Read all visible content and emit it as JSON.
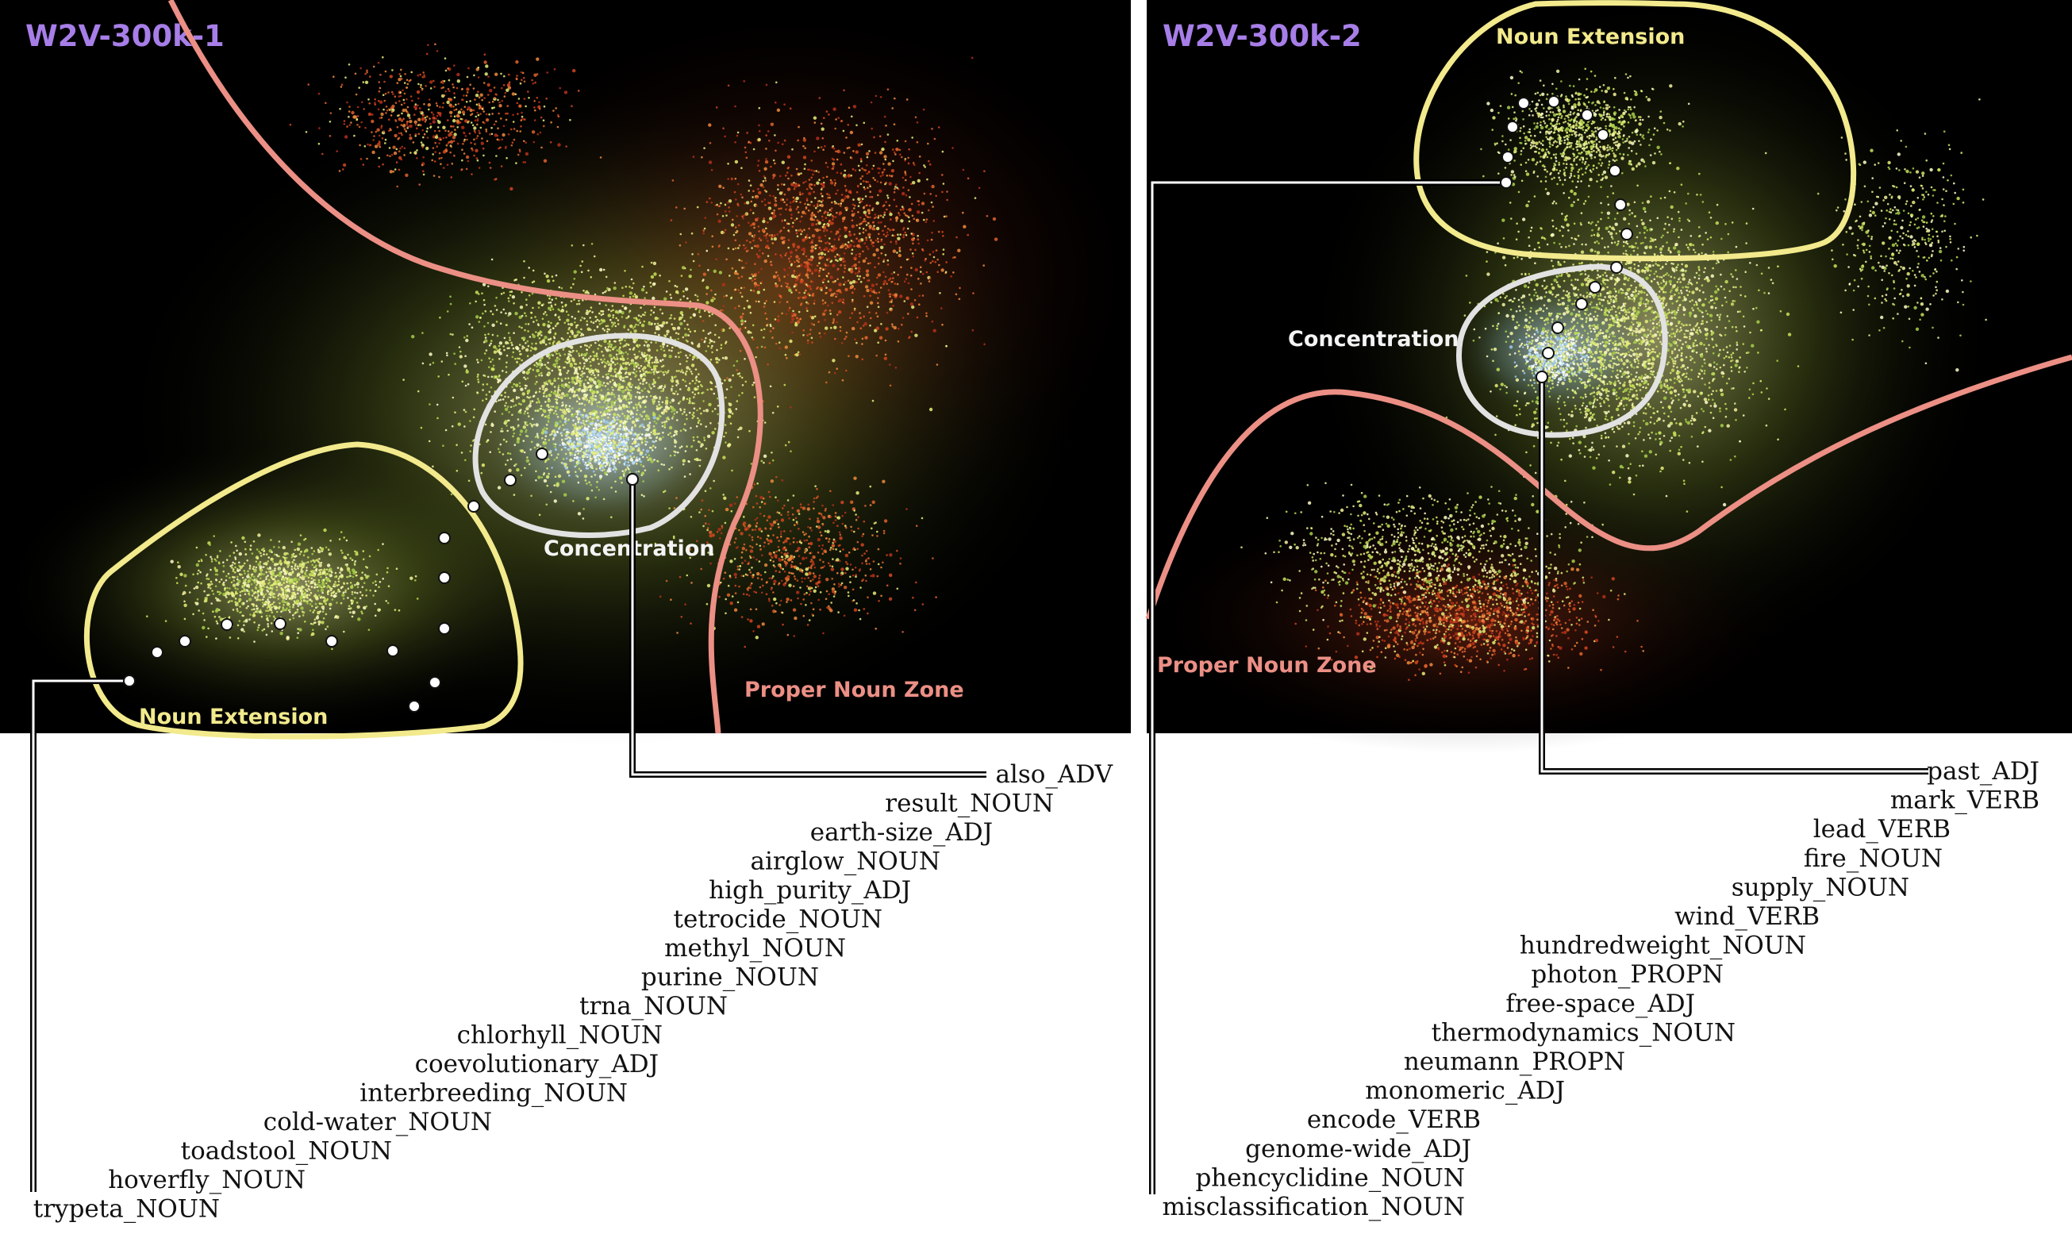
{
  "colors": {
    "title": "#a77ee8",
    "noun_extension": "#f2ea8c",
    "concentration": "#e2e2e2",
    "proper_noun_zone": "#ec8f85",
    "panel_background": "#000000"
  },
  "panels": [
    {
      "title": "W2V-300k-1",
      "labels": {
        "noun_extension": "Noun Extension",
        "concentration": "Concentration",
        "proper_noun_zone": "Proper Noun Zone"
      },
      "words": [
        "also_ADV",
        "result_NOUN",
        "earth-size_ADJ",
        "airglow_NOUN",
        "high_purity_ADJ",
        "tetrocide_NOUN",
        "methyl_NOUN",
        "purine_NOUN",
        "trna_NOUN",
        "chlorhyll_NOUN",
        "coevolutionary_ADJ",
        "interbreeding_NOUN",
        "cold-water_NOUN",
        "toadstool_NOUN",
        "hoverfly_NOUN",
        "trypeta_NOUN"
      ]
    },
    {
      "title": "W2V-300k-2",
      "labels": {
        "noun_extension": "Noun Extension",
        "concentration": "Concentration",
        "proper_noun_zone": "Proper Noun Zone"
      },
      "words": [
        "past_ADJ",
        "mark_VERB",
        "lead_VERB",
        "fire_NOUN",
        "supply_NOUN",
        "wind_VERB",
        "hundredweight_NOUN",
        "photon_PROPN",
        "free-space_ADJ",
        "thermodynamics_NOUN",
        "neumann_PROPN",
        "monomeric_ADJ",
        "encode_VERB",
        "genome-wide_ADJ",
        "phencyclidine_NOUN",
        "misclassification_NOUN"
      ]
    }
  ]
}
